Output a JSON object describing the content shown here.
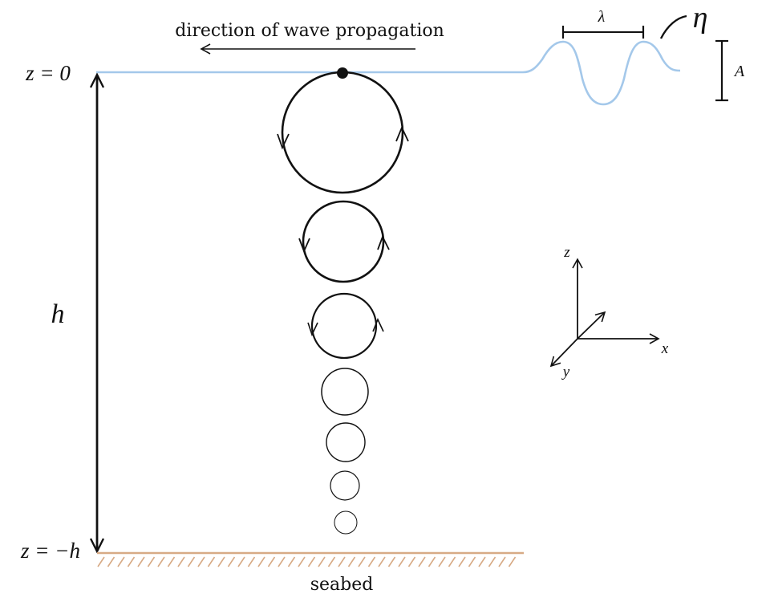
{
  "labels": {
    "direction": "direction of wave propagation",
    "seabed": "seabed",
    "z_top": "z = 0",
    "z_bottom": "z = −h",
    "depth": "h",
    "wavelength": "λ",
    "elevation": "η",
    "amplitude": "A",
    "axis_x": "x",
    "axis_y": "y",
    "axis_z": "z"
  },
  "colors": {
    "water_surface": "#a4c8ea",
    "seabed": "#d7aa85",
    "ink": "#111111"
  }
}
